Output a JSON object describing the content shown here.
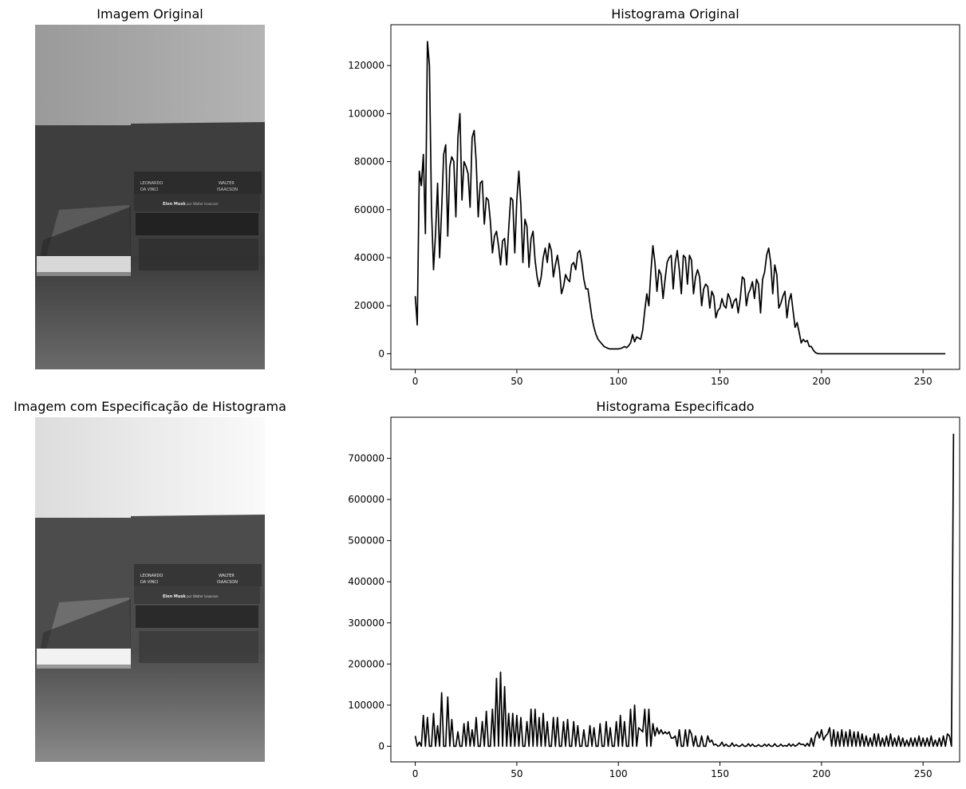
{
  "panels": {
    "original_image_title": "Imagem Original",
    "specified_image_title": "Imagem com Especificação de Histograma",
    "original_hist_title": "Histograma Original",
    "specified_hist_title": "Histograma Especificado"
  },
  "photo_text": {
    "book1_author": "LEONARDO",
    "book1_sub": "DA VINCI",
    "book1_author2": "WALTER",
    "book1_sub2": "ISAACSON",
    "book2_title": "Elon Musk",
    "book2_sub": "por Walter Isaacson"
  },
  "chart_data": [
    {
      "type": "line",
      "title": "Histograma Original",
      "xlabel": "",
      "ylabel": "",
      "xlim": [
        -12,
        268
      ],
      "ylim": [
        -6500,
        137000
      ],
      "xticks": [
        0,
        50,
        100,
        150,
        200,
        250
      ],
      "yticks": [
        0,
        20000,
        40000,
        60000,
        80000,
        100000,
        120000
      ],
      "x_start": 0,
      "values": [
        24000,
        12000,
        76000,
        70000,
        83000,
        50000,
        130000,
        120000,
        60000,
        35000,
        50000,
        71000,
        40000,
        60000,
        83000,
        87000,
        49000,
        78000,
        82000,
        80000,
        57000,
        90000,
        100000,
        64000,
        80000,
        78000,
        75000,
        61000,
        90000,
        93000,
        80000,
        57000,
        71000,
        72000,
        54000,
        65000,
        64000,
        55000,
        42000,
        49000,
        51000,
        45000,
        37000,
        47000,
        48000,
        37000,
        52000,
        65000,
        64000,
        42000,
        64000,
        76000,
        62000,
        38000,
        56000,
        53000,
        36000,
        48000,
        51000,
        39000,
        32000,
        28000,
        32000,
        40000,
        44000,
        38000,
        46000,
        43000,
        32000,
        37000,
        41000,
        35000,
        25000,
        28000,
        33000,
        31000,
        30000,
        37000,
        38000,
        35000,
        42000,
        43000,
        38000,
        31000,
        27000,
        27000,
        21000,
        15000,
        11000,
        8000,
        6000,
        5000,
        4000,
        3000,
        2600,
        2200,
        2000,
        2000,
        2000,
        2000,
        2000,
        2200,
        2500,
        3000,
        2500,
        3300,
        4500,
        8000,
        5000,
        7000,
        6500,
        6000,
        10000,
        18000,
        25000,
        20000,
        34000,
        45000,
        38000,
        26000,
        35000,
        33000,
        23000,
        31000,
        38000,
        40000,
        41000,
        27000,
        38000,
        43000,
        35000,
        25000,
        41000,
        40000,
        29000,
        41000,
        39000,
        25000,
        32000,
        35000,
        32000,
        20000,
        27000,
        29000,
        28000,
        19000,
        26000,
        24000,
        15000,
        18000,
        19000,
        23000,
        20000,
        19000,
        25000,
        23000,
        19000,
        22000,
        23000,
        17000,
        23000,
        32000,
        31000,
        20000,
        25000,
        27000,
        30000,
        23000,
        31000,
        29000,
        17000,
        31000,
        34000,
        41000,
        44000,
        38000,
        25000,
        37000,
        33000,
        19000,
        21000,
        24000,
        26000,
        15000,
        22000,
        25000,
        18000,
        11000,
        13000,
        9000,
        4500,
        6000,
        5000,
        5500,
        3000,
        3000,
        1500,
        500,
        100,
        0,
        0,
        0,
        0,
        0,
        0,
        0,
        0,
        0,
        0,
        0,
        0,
        0,
        0,
        0,
        0,
        0,
        0,
        0,
        0,
        0,
        0,
        0,
        0,
        0,
        0,
        0,
        0,
        0,
        0,
        0,
        0,
        0,
        0,
        0,
        0,
        0,
        0,
        0,
        0,
        0,
        0,
        0,
        0,
        0,
        0,
        0,
        0,
        0,
        0,
        0,
        0,
        0,
        0,
        0,
        0,
        0,
        0,
        0,
        0,
        0,
        0,
        0
      ]
    },
    {
      "type": "line",
      "title": "Histograma Especificado",
      "xlabel": "",
      "ylabel": "",
      "xlim": [
        -12,
        268
      ],
      "ylim": [
        -38000,
        800000
      ],
      "xticks": [
        0,
        50,
        100,
        150,
        200,
        250
      ],
      "yticks": [
        0,
        100000,
        200000,
        300000,
        400000,
        500000,
        600000,
        700000
      ],
      "x_start": 0,
      "values": [
        25000,
        0,
        10000,
        0,
        75000,
        0,
        70000,
        0,
        0,
        80000,
        0,
        50000,
        0,
        130000,
        0,
        0,
        120000,
        0,
        65000,
        0,
        0,
        35000,
        0,
        0,
        55000,
        0,
        60000,
        0,
        40000,
        0,
        70000,
        0,
        0,
        60000,
        0,
        85000,
        0,
        0,
        90000,
        0,
        165000,
        0,
        180000,
        0,
        145000,
        0,
        80000,
        0,
        80000,
        0,
        75000,
        0,
        70000,
        0,
        0,
        60000,
        0,
        90000,
        0,
        90000,
        0,
        70000,
        0,
        80000,
        0,
        60000,
        0,
        0,
        70000,
        0,
        70000,
        0,
        0,
        60000,
        0,
        65000,
        0,
        0,
        60000,
        0,
        50000,
        0,
        0,
        40000,
        0,
        0,
        50000,
        0,
        45000,
        0,
        0,
        55000,
        0,
        0,
        60000,
        0,
        45000,
        0,
        0,
        60000,
        0,
        75000,
        0,
        60000,
        0,
        0,
        90000,
        0,
        100000,
        0,
        45000,
        40000,
        35000,
        90000,
        0,
        90000,
        0,
        55000,
        25000,
        45000,
        30000,
        40000,
        30000,
        35000,
        30000,
        35000,
        20000,
        20000,
        25000,
        0,
        40000,
        0,
        0,
        40000,
        0,
        40000,
        30000,
        0,
        25000,
        0,
        0,
        25000,
        0,
        0,
        25000,
        10000,
        15000,
        3000,
        5000,
        0,
        2000,
        10000,
        0,
        5000,
        0,
        0,
        8000,
        0,
        4000,
        0,
        0,
        5000,
        0,
        0,
        6000,
        0,
        5000,
        0,
        0,
        4000,
        0,
        0,
        5000,
        0,
        5000,
        0,
        0,
        6000,
        0,
        0,
        5000,
        0,
        2000,
        0,
        6000,
        0,
        5000,
        0,
        3000,
        8000,
        4000,
        5000,
        0,
        7000,
        0,
        20000,
        0,
        25000,
        35000,
        20000,
        40000,
        15000,
        25000,
        30000,
        45000,
        0,
        40000,
        0,
        35000,
        0,
        40000,
        0,
        35000,
        0,
        40000,
        0,
        35000,
        0,
        35000,
        0,
        30000,
        0,
        25000,
        0,
        20000,
        0,
        30000,
        0,
        30000,
        0,
        20000,
        0,
        25000,
        0,
        30000,
        0,
        20000,
        0,
        25000,
        0,
        20000,
        0,
        15000,
        0,
        20000,
        0,
        20000,
        0,
        25000,
        0,
        20000,
        0,
        20000,
        0,
        25000,
        0,
        15000,
        0,
        20000,
        0,
        25000,
        0,
        30000,
        25000,
        0,
        760000
      ]
    }
  ]
}
